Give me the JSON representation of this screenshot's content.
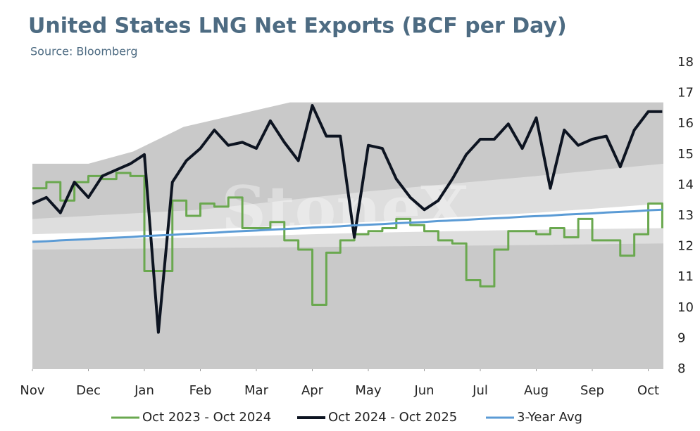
{
  "chart_data": {
    "type": "line",
    "title": "United States LNG Net Exports (BCF per Day)",
    "subtitle": "Source: Bloomberg",
    "watermark": "StoneX",
    "xlim": [
      0,
      11.27
    ],
    "xticks": [
      {
        "value": 0,
        "label": "Nov"
      },
      {
        "value": 1,
        "label": "Dec"
      },
      {
        "value": 2,
        "label": "Jan"
      },
      {
        "value": 3,
        "label": "Feb"
      },
      {
        "value": 4,
        "label": "Mar"
      },
      {
        "value": 5,
        "label": "Apr"
      },
      {
        "value": 6,
        "label": "May"
      },
      {
        "value": 7,
        "label": "Jun"
      },
      {
        "value": 8,
        "label": "Jul"
      },
      {
        "value": 9,
        "label": "Aug"
      },
      {
        "value": 10,
        "label": "Sep"
      },
      {
        "value": 11,
        "label": "Oct"
      }
    ],
    "ylim": [
      8,
      18
    ],
    "yticks": [
      8,
      9,
      10,
      11,
      12,
      13,
      14,
      15,
      16,
      17,
      18
    ],
    "y_axis_side": "right",
    "legend": "bottom",
    "bands": [
      {
        "color": "#c9c9c9",
        "x": [
          0,
          1,
          1.8,
          2.7,
          4.6,
          11.27
        ],
        "lower": [
          8,
          8,
          8,
          8,
          8,
          8
        ],
        "upper": [
          14.7,
          14.7,
          15.1,
          15.9,
          16.7,
          16.7
        ]
      },
      {
        "color": "#dedede",
        "x": [
          0,
          3,
          6,
          9,
          11.27
        ],
        "lower": [
          11.9,
          11.95,
          12.0,
          12.05,
          12.1
        ],
        "upper": [
          12.9,
          13.2,
          13.8,
          14.3,
          14.7
        ]
      },
      {
        "color": "#ffffff",
        "x": [
          0,
          3,
          6,
          9,
          11.27
        ],
        "lower": [
          12.2,
          12.3,
          12.45,
          12.55,
          12.6
        ],
        "upper": [
          12.4,
          12.55,
          12.8,
          13.1,
          13.4
        ]
      }
    ],
    "x": [
      0,
      0.25,
      0.5,
      0.75,
      1,
      1.25,
      1.5,
      1.75,
      2,
      2.25,
      2.5,
      2.75,
      3,
      3.25,
      3.5,
      3.75,
      4,
      4.25,
      4.5,
      4.75,
      5,
      5.25,
      5.5,
      5.75,
      6,
      6.25,
      6.5,
      6.75,
      7,
      7.25,
      7.5,
      7.75,
      8,
      8.25,
      8.5,
      8.75,
      9,
      9.25,
      9.5,
      9.75,
      10,
      10.25,
      10.5,
      10.75,
      11,
      11.25
    ],
    "series": [
      {
        "name": "Oct 2023 - Oct 2024",
        "color": "#6aa84f",
        "step": true,
        "width": 3,
        "values": [
          13.9,
          14.1,
          13.5,
          14.1,
          14.3,
          14.2,
          14.4,
          14.3,
          11.2,
          11.2,
          13.5,
          13.0,
          13.4,
          13.3,
          13.6,
          12.6,
          12.6,
          12.8,
          12.2,
          11.9,
          10.1,
          11.8,
          12.2,
          12.4,
          12.5,
          12.6,
          12.9,
          12.7,
          12.5,
          12.2,
          12.1,
          10.9,
          10.7,
          11.9,
          12.5,
          12.5,
          12.4,
          12.6,
          12.3,
          12.9,
          12.2,
          12.2,
          11.7,
          12.4,
          13.4,
          12.6
        ]
      },
      {
        "name": "Oct 2024 - Oct 2025",
        "color": "#0d1421",
        "step": false,
        "width": 4,
        "values": [
          13.4,
          13.6,
          13.1,
          14.1,
          13.6,
          14.3,
          14.5,
          14.7,
          15.0,
          9.2,
          14.1,
          14.8,
          15.2,
          15.8,
          15.3,
          15.4,
          15.2,
          16.1,
          15.4,
          14.8,
          16.6,
          15.6,
          15.6,
          12.3,
          15.3,
          15.2,
          14.2,
          13.6,
          13.2,
          13.5,
          14.2,
          15.0,
          15.5,
          15.5,
          16.0,
          15.2,
          16.2,
          13.9,
          15.8,
          15.3,
          15.5,
          15.6,
          14.6,
          15.8,
          16.4,
          16.4
        ]
      },
      {
        "name": "3-Year Avg",
        "color": "#5b9bd5",
        "step": false,
        "width": 3,
        "values": [
          12.15,
          12.17,
          12.2,
          12.22,
          12.24,
          12.27,
          12.29,
          12.31,
          12.34,
          12.36,
          12.38,
          12.41,
          12.43,
          12.45,
          12.48,
          12.5,
          12.52,
          12.55,
          12.57,
          12.59,
          12.62,
          12.64,
          12.66,
          12.69,
          12.71,
          12.73,
          12.76,
          12.78,
          12.8,
          12.83,
          12.85,
          12.87,
          12.9,
          12.92,
          12.94,
          12.97,
          12.99,
          13.01,
          13.04,
          13.06,
          13.08,
          13.11,
          13.13,
          13.15,
          13.18,
          13.2
        ]
      }
    ]
  }
}
